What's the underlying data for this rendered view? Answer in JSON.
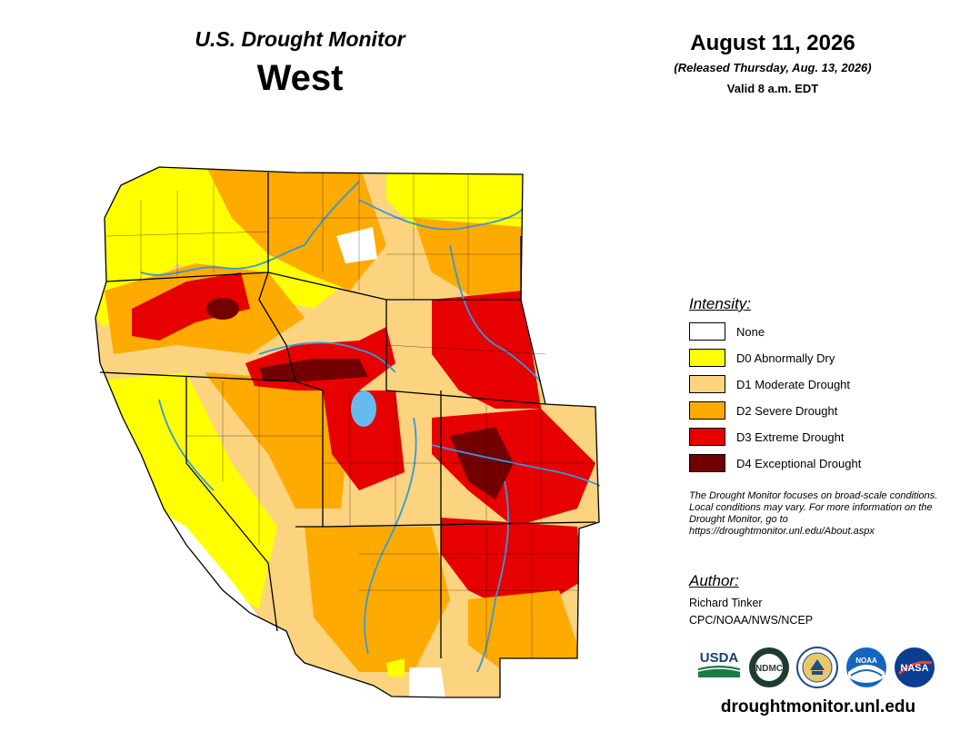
{
  "header": {
    "product_title": "U.S. Drought Monitor",
    "region": "West",
    "date": "August 11, 2026",
    "release_note": "(Released Thursday, Aug. 13, 2026)",
    "valid_time": "Valid 8 a.m. EDT"
  },
  "legend": {
    "heading": "Intensity:",
    "items": [
      {
        "label": "None",
        "color": "#ffffff"
      },
      {
        "label": "D0 Abnormally Dry",
        "color": "#ffff00"
      },
      {
        "label": "D1 Moderate Drought",
        "color": "#fcd37f"
      },
      {
        "label": "D2 Severe Drought",
        "color": "#ffaa00"
      },
      {
        "label": "D3 Extreme Drought",
        "color": "#e60000"
      },
      {
        "label": "D4 Exceptional Drought",
        "color": "#730000"
      }
    ]
  },
  "disclaimer": "The Drought Monitor focuses on broad-scale conditions. Local conditions may vary. For more information on the Drought Monitor, go to https://droughtmonitor.unl.edu/About.aspx",
  "author": {
    "heading": "Author:",
    "name": "Richard Tinker",
    "org": "CPC/NOAA/NWS/NCEP"
  },
  "logos": [
    {
      "name": "usda-logo",
      "text": "USDA"
    },
    {
      "name": "ndmc-logo",
      "text": "NDMC"
    },
    {
      "name": "doc-seal-logo",
      "text": ""
    },
    {
      "name": "noaa-logo",
      "text": "NOAA"
    },
    {
      "name": "nasa-logo",
      "text": "NASA"
    }
  ],
  "website": "droughtmonitor.unl.edu",
  "colors": {
    "river": "#3399dd",
    "lake": "#66bbee",
    "border": "#000000"
  }
}
